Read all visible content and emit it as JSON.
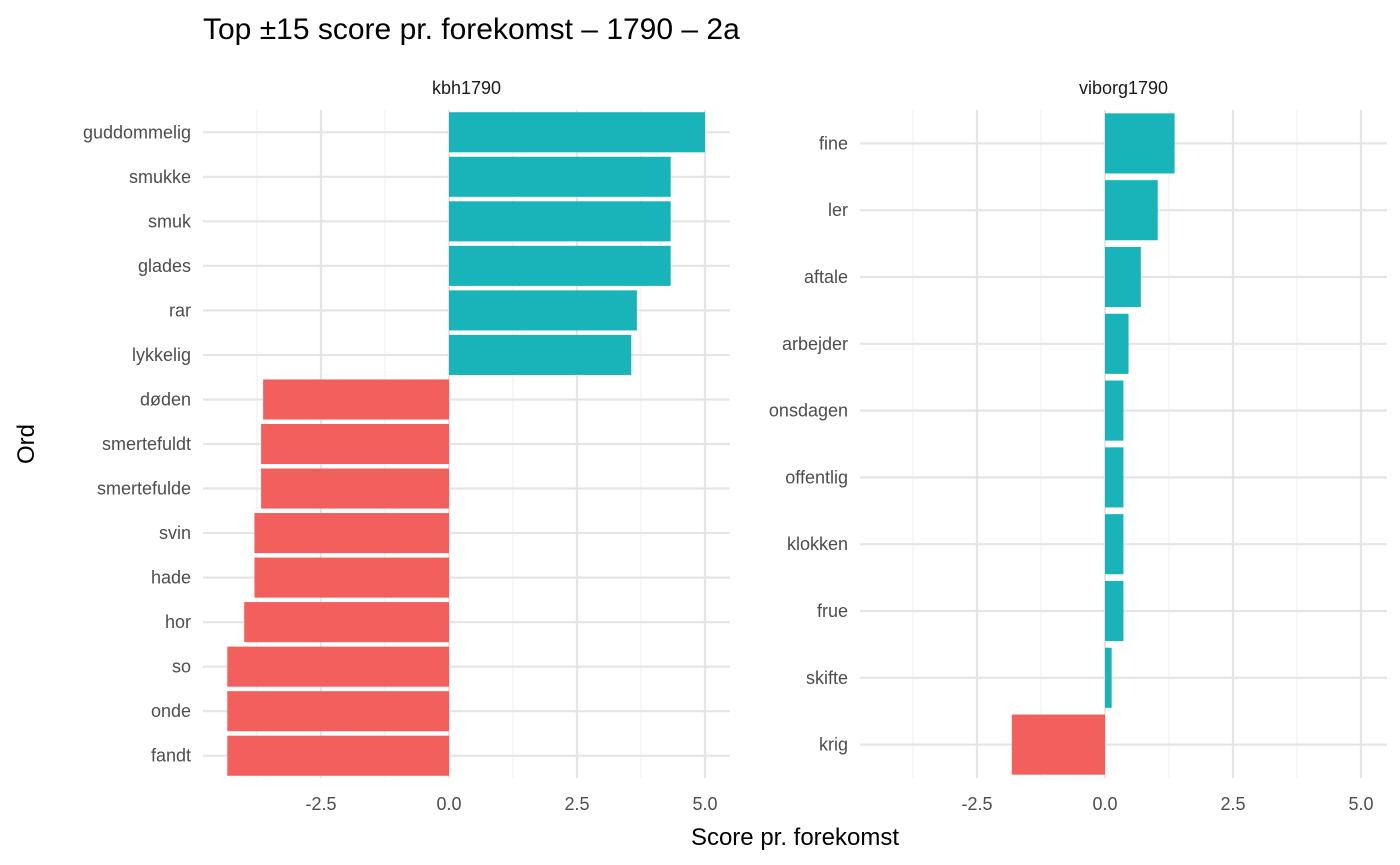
{
  "chart_data": {
    "type": "bar",
    "orientation": "horizontal",
    "title": "Top ±15 score pr. forekomst – 1790 – 2a",
    "xlabel": "Score pr. forekomst",
    "ylabel": "Ord",
    "xlim": [
      -4.6,
      5.5
    ],
    "xticks": [
      -2.5,
      0.0,
      2.5,
      5.0
    ],
    "xtick_labels": [
      "-2.5",
      "0.0",
      "2.5",
      "5.0"
    ],
    "grid": true,
    "colors": {
      "positive": "#19B4B9",
      "negative": "#F35F5C"
    },
    "panels": [
      {
        "name": "kbh1790",
        "categories": [
          "guddommelig",
          "smukke",
          "smuk",
          "glades",
          "rar",
          "lykkelig",
          "døden",
          "smertefuldt",
          "smertefulde",
          "svin",
          "hade",
          "hor",
          "so",
          "onde",
          "fandt"
        ],
        "values": [
          5.0,
          4.33,
          4.33,
          4.33,
          3.67,
          3.56,
          -3.63,
          -3.67,
          -3.67,
          -3.8,
          -3.8,
          -4.0,
          -4.33,
          -4.33,
          -4.33
        ]
      },
      {
        "name": "viborg1790",
        "categories": [
          "fine",
          "ler",
          "aftale",
          "arbejder",
          "onsdagen",
          "offentlig",
          "klokken",
          "frue",
          "skifte",
          "krig"
        ],
        "values": [
          1.36,
          1.03,
          0.7,
          0.46,
          0.36,
          0.36,
          0.36,
          0.36,
          0.13,
          -1.82
        ]
      }
    ]
  }
}
